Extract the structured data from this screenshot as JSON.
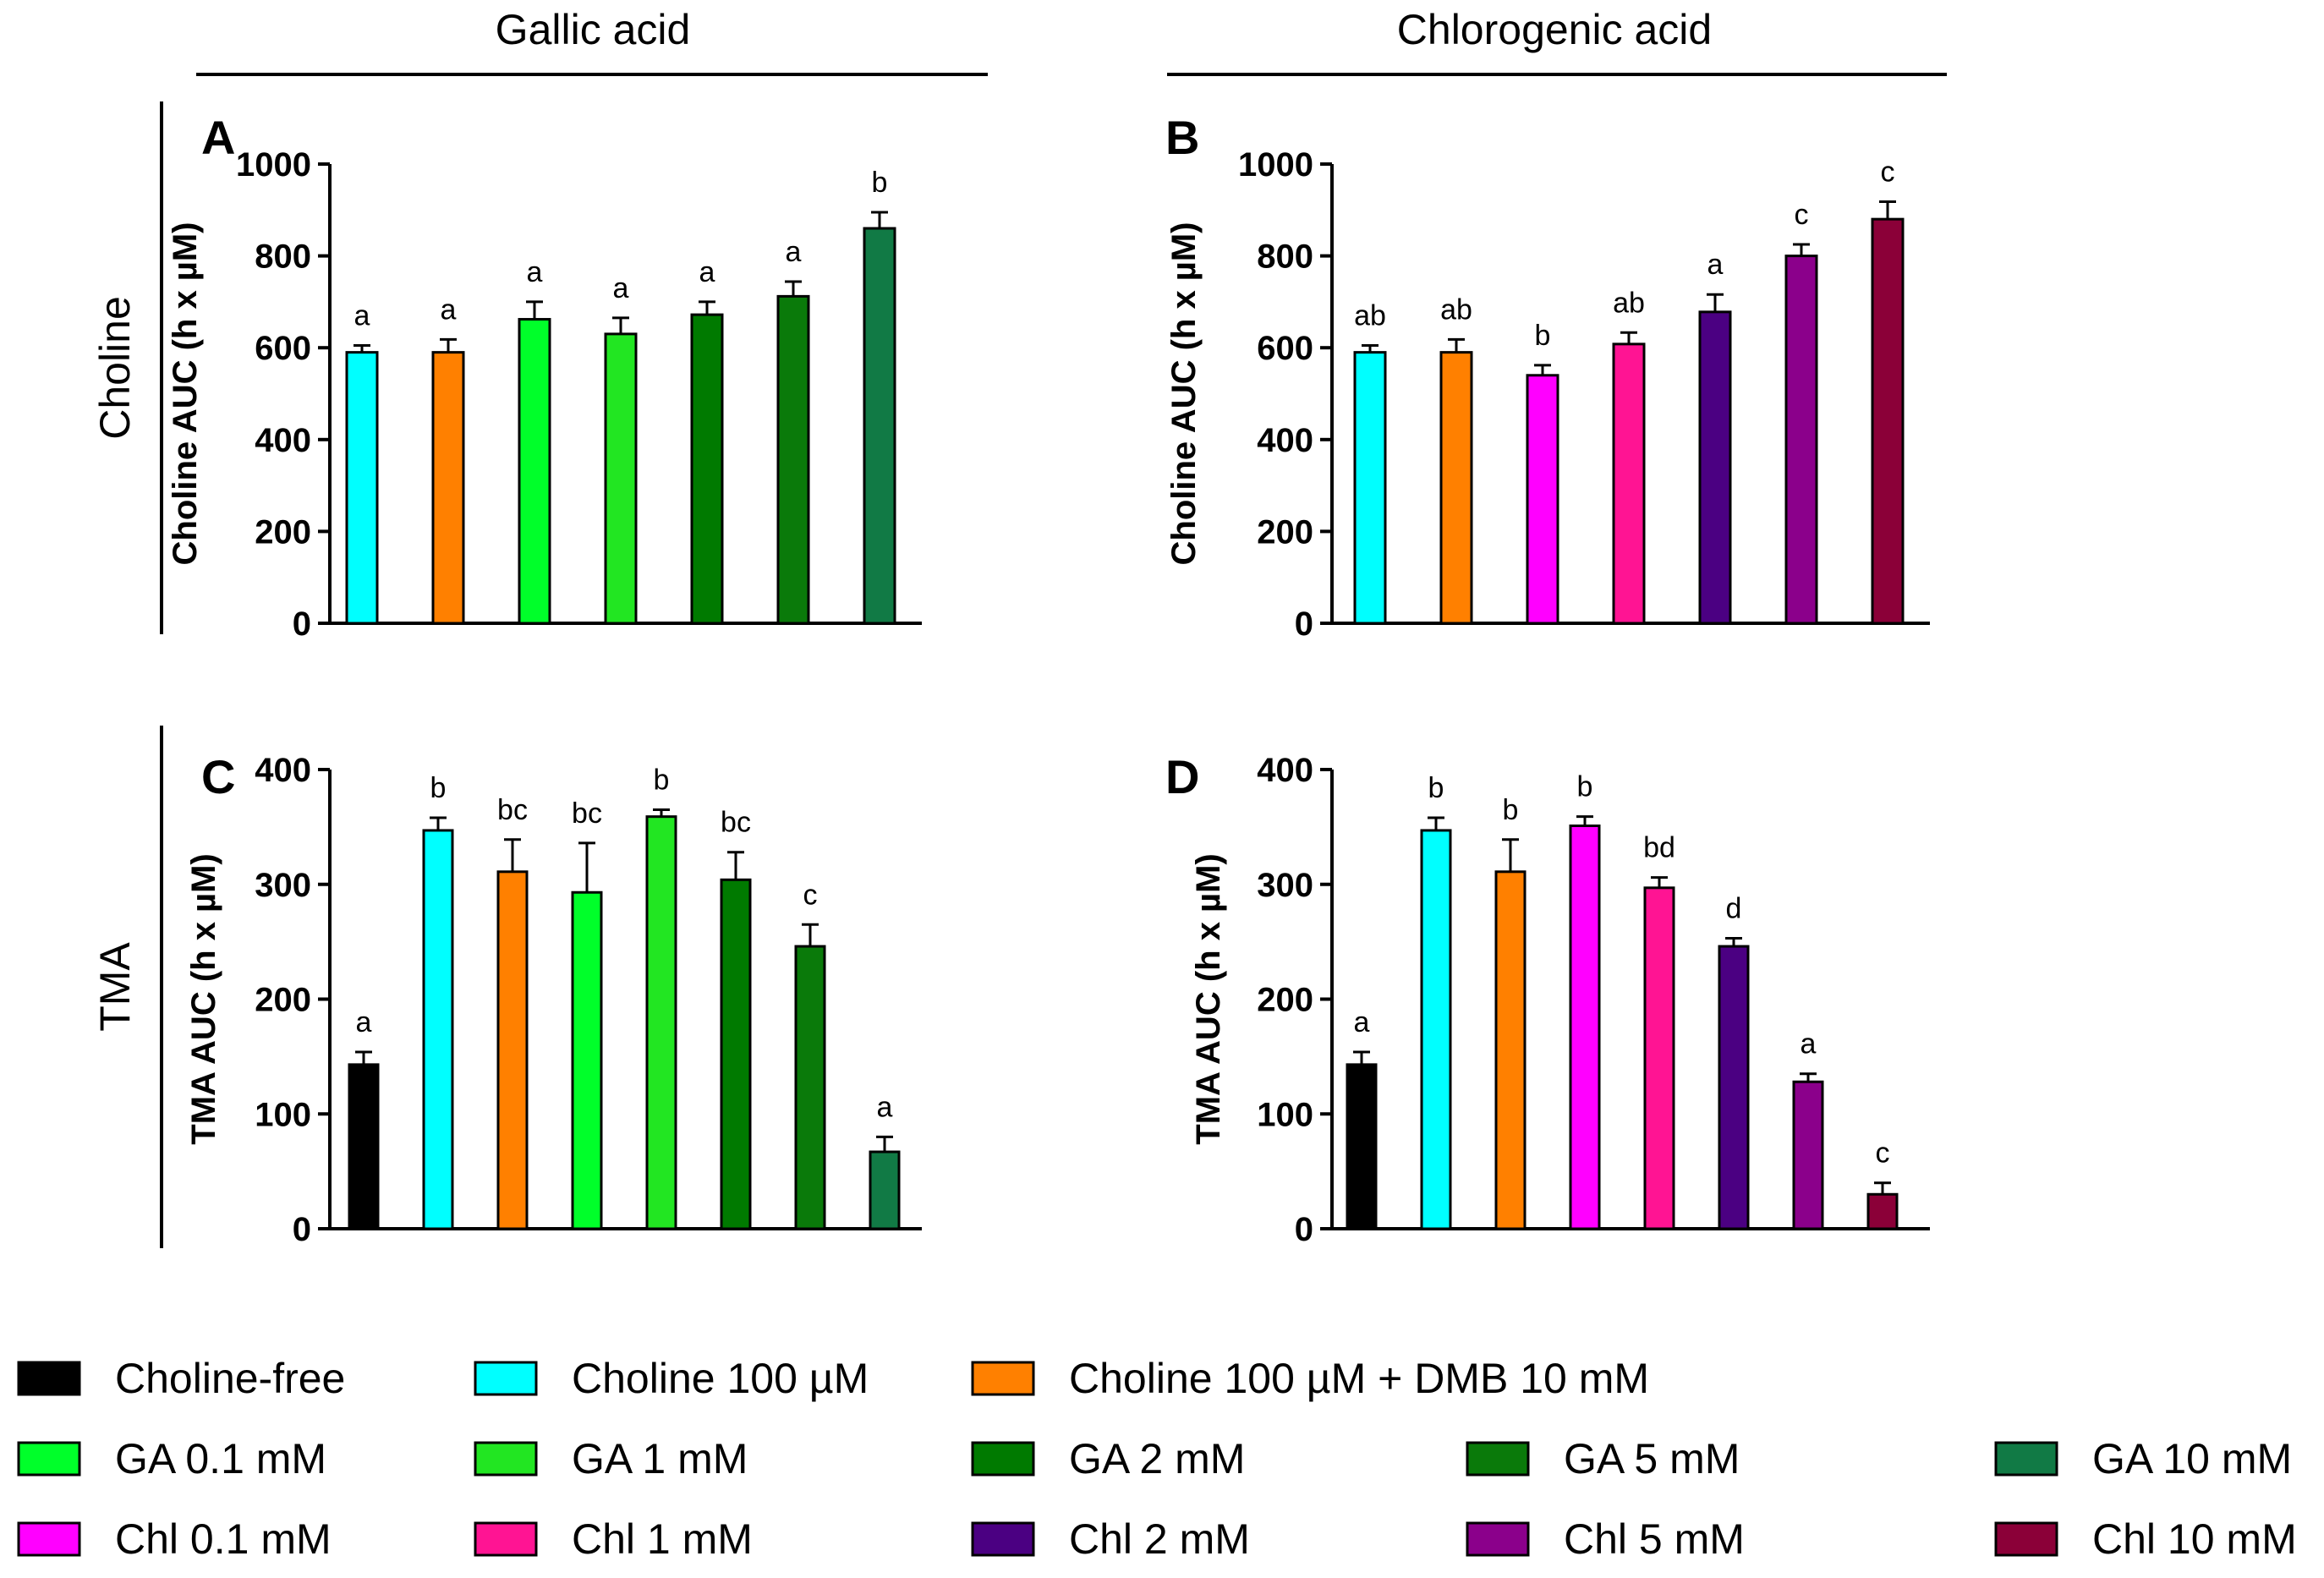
{
  "headers": {
    "left": "Gallic acid",
    "right": "Chlorogenic acid",
    "row1": "Choline",
    "row2": "TMA"
  },
  "colors": {
    "choline_free": "#000000",
    "choline_100": "#00FFFF",
    "dmb": "#FF8000",
    "ga_01": "#00FF2A",
    "ga_1": "#22E622",
    "ga_2": "#007A00",
    "ga_5": "#0A7A0A",
    "ga_10": "#117A45",
    "chl_01": "#FF00FF",
    "chl_1": "#FF1493",
    "chl_2": "#4B0082",
    "chl_5": "#8B008B",
    "chl_10": "#8B0038"
  },
  "chart_data": [
    {
      "id": "A",
      "panel_label": "A",
      "type": "bar",
      "ylabel": "Choline AUC (h x µM)",
      "ylim": [
        0,
        1000
      ],
      "yticks": [
        "0",
        "200",
        "400",
        "600",
        "800",
        "1000"
      ],
      "tick_values": [
        0,
        200,
        400,
        600,
        800,
        1000
      ],
      "categories": [
        "Choline 100 µM",
        "Choline 100 µM + DMB 10 mM",
        "GA 0.1 mM",
        "GA 1 mM",
        "GA 2 mM",
        "GA 5 mM",
        "GA 10 mM"
      ],
      "values": [
        590,
        590,
        662,
        630,
        672,
        712,
        860
      ],
      "errors": [
        15,
        28,
        38,
        35,
        28,
        32,
        35
      ],
      "letters": [
        "a",
        "a",
        "a",
        "a",
        "a",
        "a",
        "b"
      ],
      "colors": [
        "#00FFFF",
        "#FF8000",
        "#00FF2A",
        "#22E622",
        "#007A00",
        "#0A7A0A",
        "#117A45"
      ]
    },
    {
      "id": "B",
      "panel_label": "B",
      "type": "bar",
      "ylabel": "Choline AUC (h x µM)",
      "ylim": [
        0,
        1000
      ],
      "yticks": [
        "0",
        "200",
        "400",
        "600",
        "800",
        "1000"
      ],
      "tick_values": [
        0,
        200,
        400,
        600,
        800,
        1000
      ],
      "categories": [
        "Choline 100 µM",
        "Choline 100 µM + DMB 10 mM",
        "Chl 0.1 mM",
        "Chl 1 mM",
        "Chl 2 mM",
        "Chl 5 mM",
        "Chl 10 mM"
      ],
      "values": [
        590,
        590,
        540,
        608,
        678,
        800,
        880
      ],
      "errors": [
        15,
        28,
        22,
        25,
        38,
        25,
        38
      ],
      "letters": [
        "ab",
        "ab",
        "b",
        "ab",
        "a",
        "c",
        "c"
      ],
      "colors": [
        "#00FFFF",
        "#FF8000",
        "#FF00FF",
        "#FF1493",
        "#4B0082",
        "#8B008B",
        "#8B0038"
      ]
    },
    {
      "id": "C",
      "panel_label": "C",
      "type": "bar",
      "ylabel": "TMA AUC (h x µM)",
      "ylim": [
        0,
        400
      ],
      "yticks": [
        "0",
        "100",
        "200",
        "300",
        "400"
      ],
      "tick_values": [
        0,
        100,
        200,
        300,
        400
      ],
      "categories": [
        "Choline-free",
        "Choline 100 µM",
        "Choline 100 µM + DMB 10 mM",
        "GA 0.1 mM",
        "GA 1 mM",
        "GA 2 mM",
        "GA 5 mM",
        "GA 10 mM"
      ],
      "values": [
        143,
        347,
        311,
        293,
        359,
        304,
        246,
        67
      ],
      "errors": [
        11,
        11,
        28,
        43,
        6,
        24,
        19,
        13
      ],
      "letters": [
        "a",
        "b",
        "bc",
        "bc",
        "b",
        "bc",
        "c",
        "a"
      ],
      "colors": [
        "#000000",
        "#00FFFF",
        "#FF8000",
        "#00FF2A",
        "#22E622",
        "#007A00",
        "#0A7A0A",
        "#117A45"
      ]
    },
    {
      "id": "D",
      "panel_label": "D",
      "type": "bar",
      "ylabel": "TMA AUC (h x µM)",
      "ylim": [
        0,
        400
      ],
      "yticks": [
        "0",
        "100",
        "200",
        "300",
        "400"
      ],
      "tick_values": [
        0,
        100,
        200,
        300,
        400
      ],
      "categories": [
        "Choline-free",
        "Choline 100 µM",
        "Choline 100 µM + DMB 10 mM",
        "Chl 0.1 mM",
        "Chl 1 mM",
        "Chl 2 mM",
        "Chl 5 mM",
        "Chl 10 mM"
      ],
      "values": [
        143,
        347,
        311,
        351,
        297,
        246,
        128,
        30
      ],
      "errors": [
        11,
        11,
        28,
        8,
        9,
        7,
        7,
        10
      ],
      "letters": [
        "a",
        "b",
        "b",
        "b",
        "bd",
        "d",
        "a",
        "c"
      ],
      "colors": [
        "#000000",
        "#00FFFF",
        "#FF8000",
        "#FF00FF",
        "#FF1493",
        "#4B0082",
        "#8B008B",
        "#8B0038"
      ]
    }
  ],
  "legend": [
    [
      {
        "label": "Choline-free",
        "color": "#000000"
      },
      {
        "label": "Choline 100 µM",
        "color": "#00FFFF"
      },
      {
        "label": "Choline 100 µM + DMB 10 mM",
        "color": "#FF8000"
      }
    ],
    [
      {
        "label": "GA 0.1 mM",
        "color": "#00FF2A"
      },
      {
        "label": "GA 1 mM",
        "color": "#22E622"
      },
      {
        "label": "GA 2 mM",
        "color": "#007A00"
      },
      {
        "label": "GA 5 mM",
        "color": "#0A7A0A"
      },
      {
        "label": "GA 10 mM",
        "color": "#117A45"
      }
    ],
    [
      {
        "label": "Chl 0.1 mM",
        "color": "#FF00FF"
      },
      {
        "label": "Chl 1 mM",
        "color": "#FF1493"
      },
      {
        "label": "Chl 2 mM",
        "color": "#4B0082"
      },
      {
        "label": "Chl 5 mM",
        "color": "#8B008B"
      },
      {
        "label": "Chl 10 mM",
        "color": "#8B0038"
      }
    ]
  ]
}
